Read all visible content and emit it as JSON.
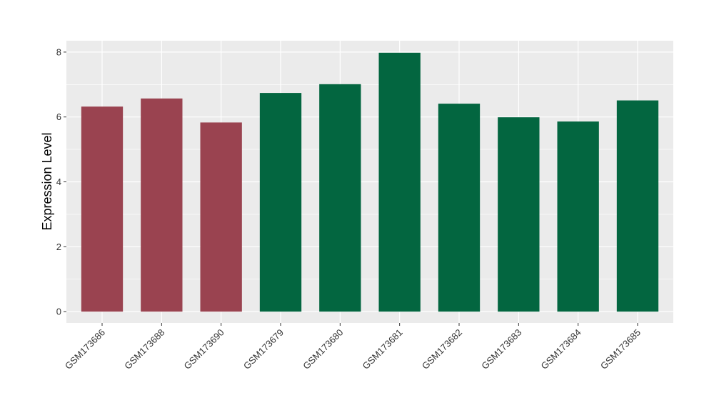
{
  "chart_data": {
    "type": "bar",
    "title": "",
    "xlabel": "",
    "ylabel": "Expression Level",
    "categories": [
      "GSM173686",
      "GSM173688",
      "GSM173690",
      "GSM173679",
      "GSM173680",
      "GSM173681",
      "GSM173682",
      "GSM173683",
      "GSM173684",
      "GSM173685"
    ],
    "values": [
      6.32,
      6.57,
      5.83,
      6.74,
      7.01,
      7.98,
      6.41,
      5.99,
      5.86,
      6.51
    ],
    "groups": [
      0,
      0,
      0,
      1,
      1,
      1,
      1,
      1,
      1,
      1
    ],
    "group_colors": [
      "#9a4350",
      "#036640"
    ],
    "ylim": [
      -0.35,
      8.35
    ],
    "yticks": [
      0,
      2,
      4,
      6,
      8
    ],
    "grid": true,
    "panel_background": "#ebebeb",
    "grid_color": "#ffffff"
  }
}
